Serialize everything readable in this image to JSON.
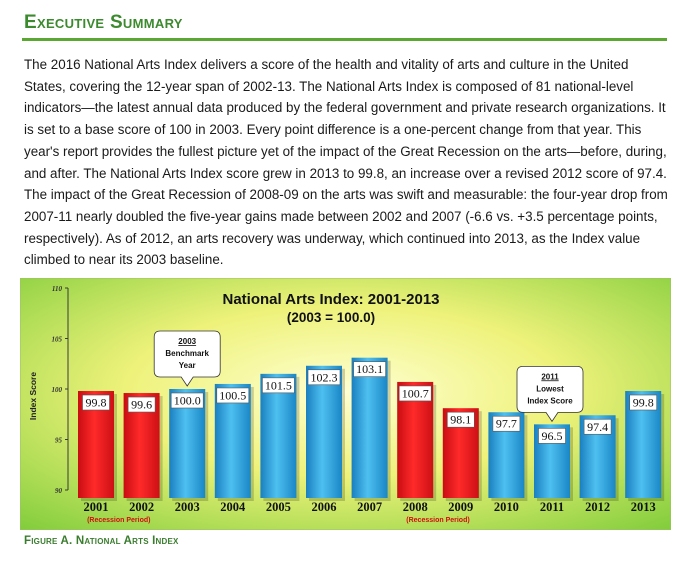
{
  "section": {
    "heading": "Executive Summary",
    "paragraph": "The 2016 National Arts Index delivers a score of the health and vitality of arts and culture in the United States, covering the 12-year span of 2002-13.  The National Arts Index is composed of 81 national-level indicators—the latest annual data produced by the federal government and private research organizations. It is set to a base score of 100 in 2003. Every point difference is a one-percent change from that year.  This year's report provides the fullest picture yet of the impact of the Great Recession on the arts—before, during, and after.  The National Arts Index score grew in 2013 to 99.8, an increase over a revised 2012 score of 97.4.  The impact of the Great Recession of 2008-09 on the arts was swift and measurable:  the four-year drop from 2007-11 nearly doubled the five-year gains made between 2002 and 2007 (-6.6 vs. +3.5 percentage points, respectively).  As of 2012, an arts recovery was underway, which continued into 2013, as the Index value climbed to near its 2003 baseline."
  },
  "figure_caption": "Figure A. National Arts Index",
  "chart_data": {
    "type": "bar",
    "title": "National Arts Index: 2001-2013",
    "subtitle": "(2003 = 100.0)",
    "ylabel": "Index Score",
    "xlabel": "",
    "ylim": [
      90,
      110
    ],
    "yticks": [
      90,
      95,
      100,
      105,
      110
    ],
    "categories": [
      "2001",
      "2002",
      "2003",
      "2004",
      "2005",
      "2006",
      "2007",
      "2008",
      "2009",
      "2010",
      "2011",
      "2012",
      "2013"
    ],
    "values": [
      99.8,
      99.6,
      100.0,
      100.5,
      101.5,
      102.3,
      103.1,
      100.7,
      98.1,
      97.7,
      96.5,
      97.4,
      99.8
    ],
    "value_labels": [
      "99.8",
      "99.6",
      "100.0",
      "100.5",
      "101.5",
      "102.3",
      "103.1",
      "100.7",
      "98.1",
      "97.7",
      "96.5",
      "97.4",
      "99.8"
    ],
    "recession_years": [
      "2001",
      "2002",
      "2008",
      "2009"
    ],
    "recession_note": "(Recession Period)",
    "colors": {
      "recession": "#e8151b",
      "normal": "#2a9fd8"
    },
    "grid": false,
    "callouts": [
      {
        "lines": [
          "2003",
          "Benchmark",
          "Year"
        ],
        "target": "2003"
      },
      {
        "lines": [
          "2011",
          "Lowest",
          "Index Score"
        ],
        "target": "2011"
      }
    ]
  }
}
